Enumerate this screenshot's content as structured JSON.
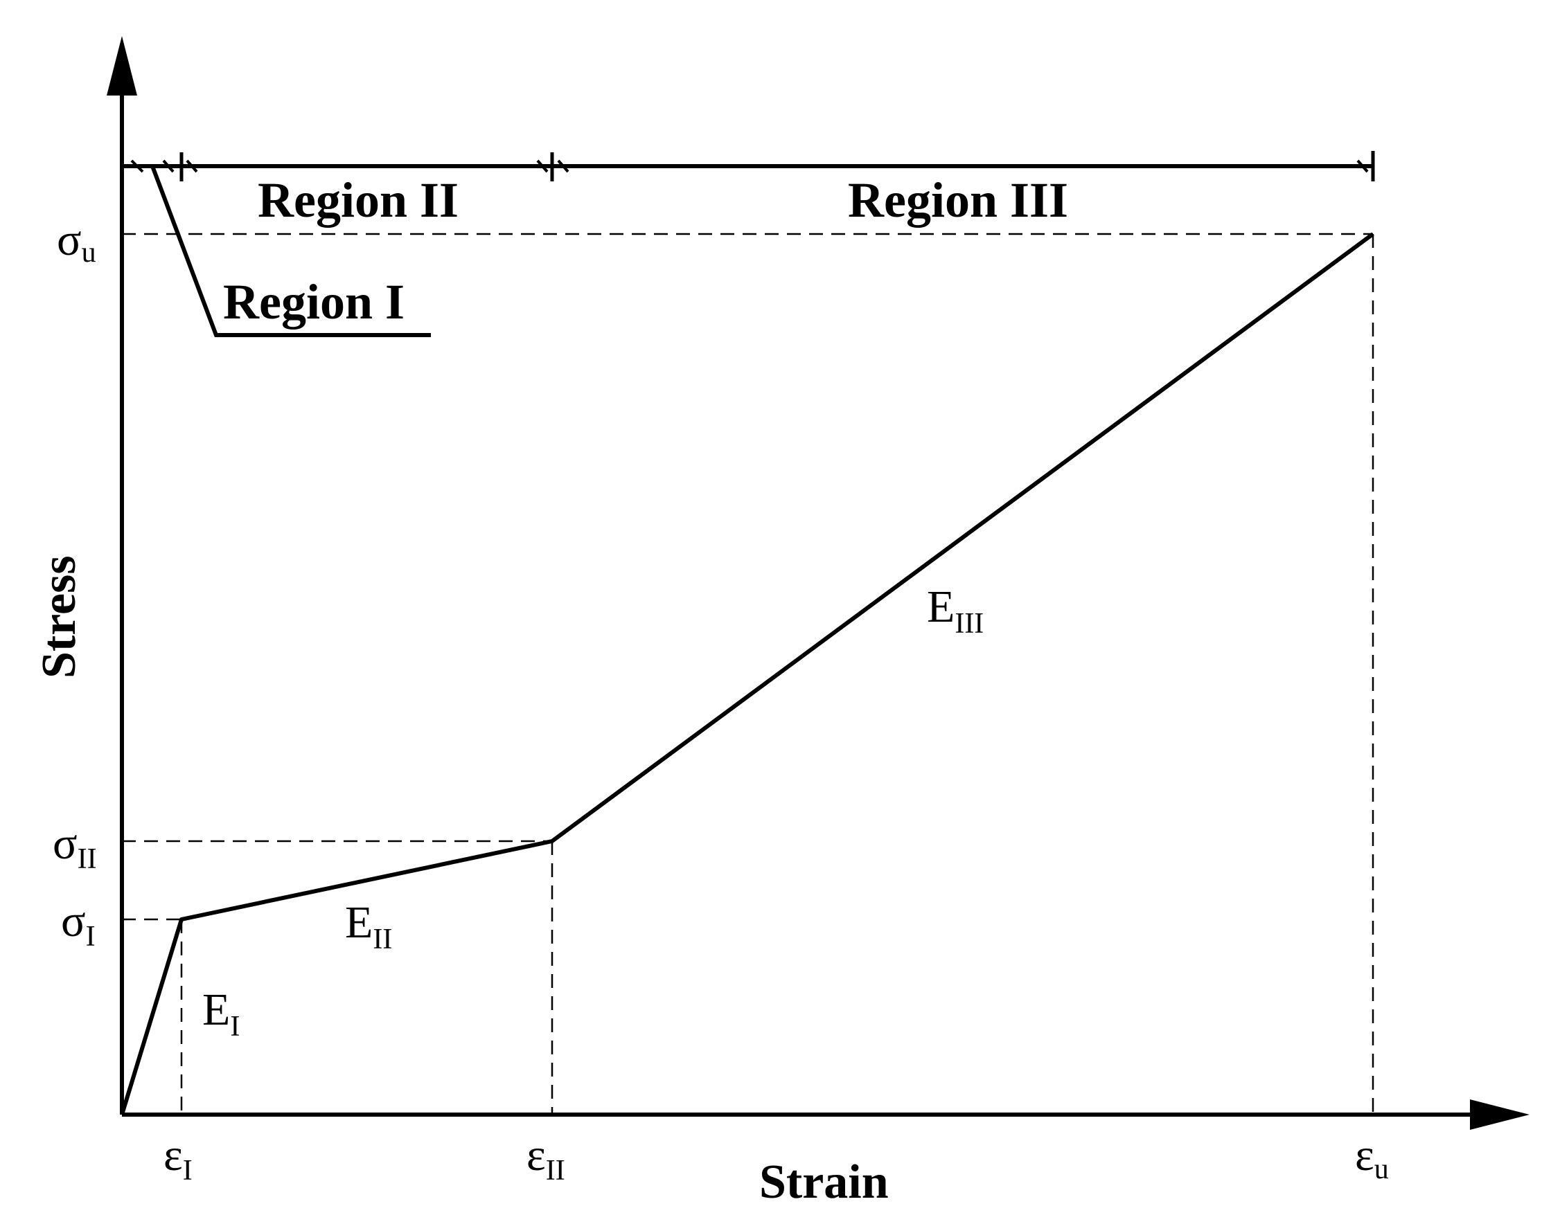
{
  "diagram": {
    "axes": {
      "x_label": "Strain",
      "y_label": "Stress"
    },
    "regions": [
      {
        "label": "Region I"
      },
      {
        "label": "Region II"
      },
      {
        "label": "Region III"
      }
    ],
    "stress_ticks": [
      {
        "symbol": "σ",
        "sub": "u"
      },
      {
        "symbol": "σ",
        "sub": "II"
      },
      {
        "symbol": "σ",
        "sub": "I"
      }
    ],
    "strain_ticks": [
      {
        "symbol": "ε",
        "sub": "I"
      },
      {
        "symbol": "ε",
        "sub": "II"
      },
      {
        "symbol": "ε",
        "sub": "u"
      }
    ],
    "moduli": [
      {
        "symbol": "E",
        "sub": "I"
      },
      {
        "symbol": "E",
        "sub": "II"
      },
      {
        "symbol": "E",
        "sub": "III"
      }
    ],
    "colors": {
      "line": "#000000",
      "background": "#ffffff"
    }
  }
}
